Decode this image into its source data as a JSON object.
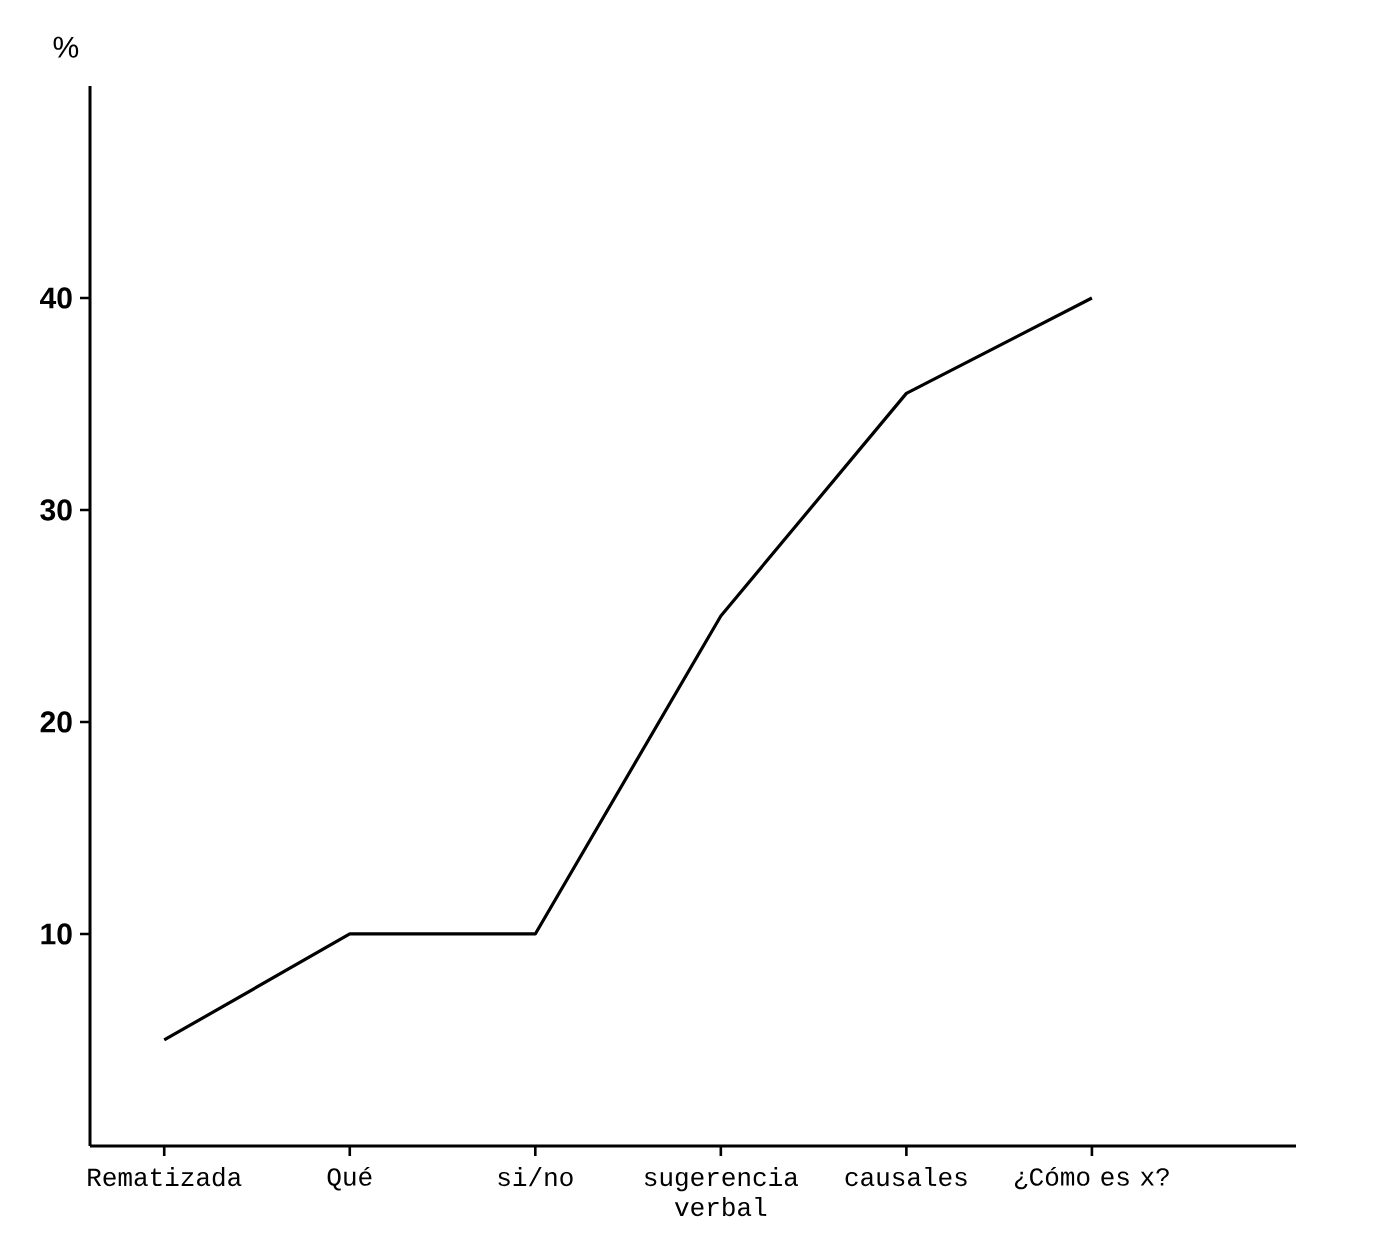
{
  "chart_data": {
    "type": "line",
    "categories": [
      "Rematizada",
      "Qué",
      "si/no",
      "sugerencia verbal",
      "causales",
      "¿Cómo es x?"
    ],
    "values": [
      5,
      10,
      10,
      25,
      35.5,
      40
    ],
    "color": "#000000",
    "ylabel": "%",
    "ylim": [
      0,
      50
    ],
    "yticks": [
      10,
      20,
      30,
      40
    ]
  }
}
